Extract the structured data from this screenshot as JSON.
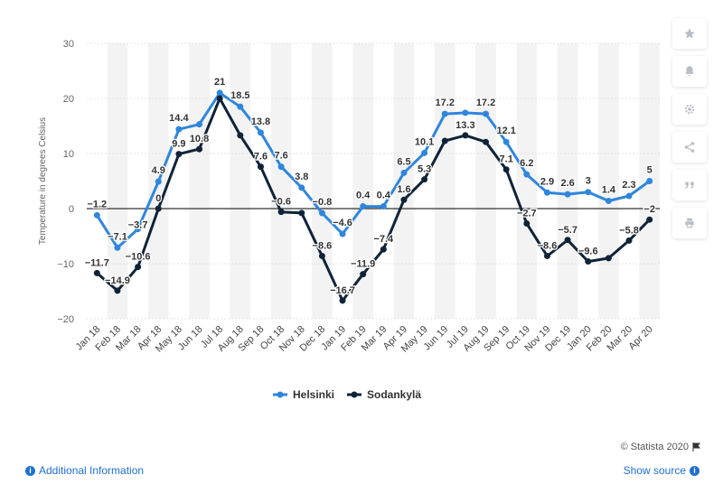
{
  "chart_data": {
    "type": "line",
    "categories": [
      "Jan 18",
      "Feb 18",
      "Mar 18",
      "Apr 18",
      "May 18",
      "Jun 18",
      "Jul 18",
      "Aug 18",
      "Sep 18",
      "Oct 18",
      "Nov 18",
      "Dec 18",
      "Jan 19",
      "Feb 19",
      "Mar 19",
      "Apr 19",
      "May 19",
      "Jun 19",
      "Jul 19",
      "Aug 19",
      "Sep 19",
      "Oct 19",
      "Nov 19",
      "Dec 19",
      "Jan 20",
      "Feb 20",
      "Mar 20",
      "Apr 20"
    ],
    "series": [
      {
        "name": "Helsinki",
        "color": "#2f86dc",
        "values": [
          -1.2,
          -7.1,
          -3.7,
          4.9,
          14.4,
          15.3,
          21,
          18.5,
          13.8,
          7.6,
          3.8,
          -0.8,
          -4.6,
          0.4,
          0.4,
          6.5,
          10.1,
          17.2,
          17.4,
          17.2,
          12.1,
          6.2,
          2.9,
          2.6,
          3,
          1.4,
          2.3,
          5
        ],
        "labels": [
          "−1.2",
          "−7.1",
          "",
          "4.9",
          "14.4",
          "",
          "21",
          "18.5",
          "13.8",
          "7.6",
          "3.8",
          "−0.8",
          "−4.6",
          "0.4",
          "0.4",
          "6.5",
          "10.1",
          "17.2",
          "",
          "17.2",
          "12.1",
          "6.2",
          "2.9",
          "2.6",
          "3",
          "1.4",
          "2.3",
          "5"
        ]
      },
      {
        "name": "Sodankylä",
        "color": "#0f2338",
        "values": [
          -11.7,
          -14.9,
          -10.6,
          0,
          9.9,
          10.8,
          20,
          13.3,
          7.6,
          -0.6,
          -0.8,
          -8.6,
          -16.7,
          -11.9,
          -7.4,
          1.6,
          5.3,
          12.3,
          13.3,
          12.1,
          7.1,
          -2.7,
          -8.6,
          -5.7,
          -9.6,
          -9,
          -5.8,
          -2
        ],
        "labels": [
          "−11.7",
          "−14.9",
          "−10.6",
          "0",
          "9.9",
          "10.8",
          "",
          "",
          "7.6",
          "−0.6",
          "",
          "−8.6",
          "−16.7",
          "−11.9",
          "−7.4",
          "1.6",
          "5.3",
          "",
          "13.3",
          "",
          "7.1",
          "−2.7",
          "−8.6",
          "−5.7",
          "−9.6",
          "",
          "−5.8",
          "−2"
        ]
      }
    ],
    "extra_labels": [
      {
        "text": "−3.7",
        "x_index": 2,
        "y": -3.7,
        "color": "#333333"
      }
    ],
    "ylabel": "Temperature in degrees Celsius",
    "ylim": [
      -20,
      30
    ],
    "yticks": [
      -20,
      -10,
      0,
      10,
      20,
      30
    ],
    "ytick_labels": [
      "−20",
      "−10",
      "0",
      "10",
      "20",
      "30"
    ],
    "legend_position": "bottom-center",
    "grid": "alternating column bands"
  },
  "footer": {
    "additional_info": "Additional Information",
    "show_source": "Show source",
    "credit": "© Statista 2020"
  },
  "toolbar": {
    "buttons": [
      "star-icon",
      "bell-icon",
      "gear-icon",
      "share-icon",
      "quote-icon",
      "print-icon"
    ]
  }
}
